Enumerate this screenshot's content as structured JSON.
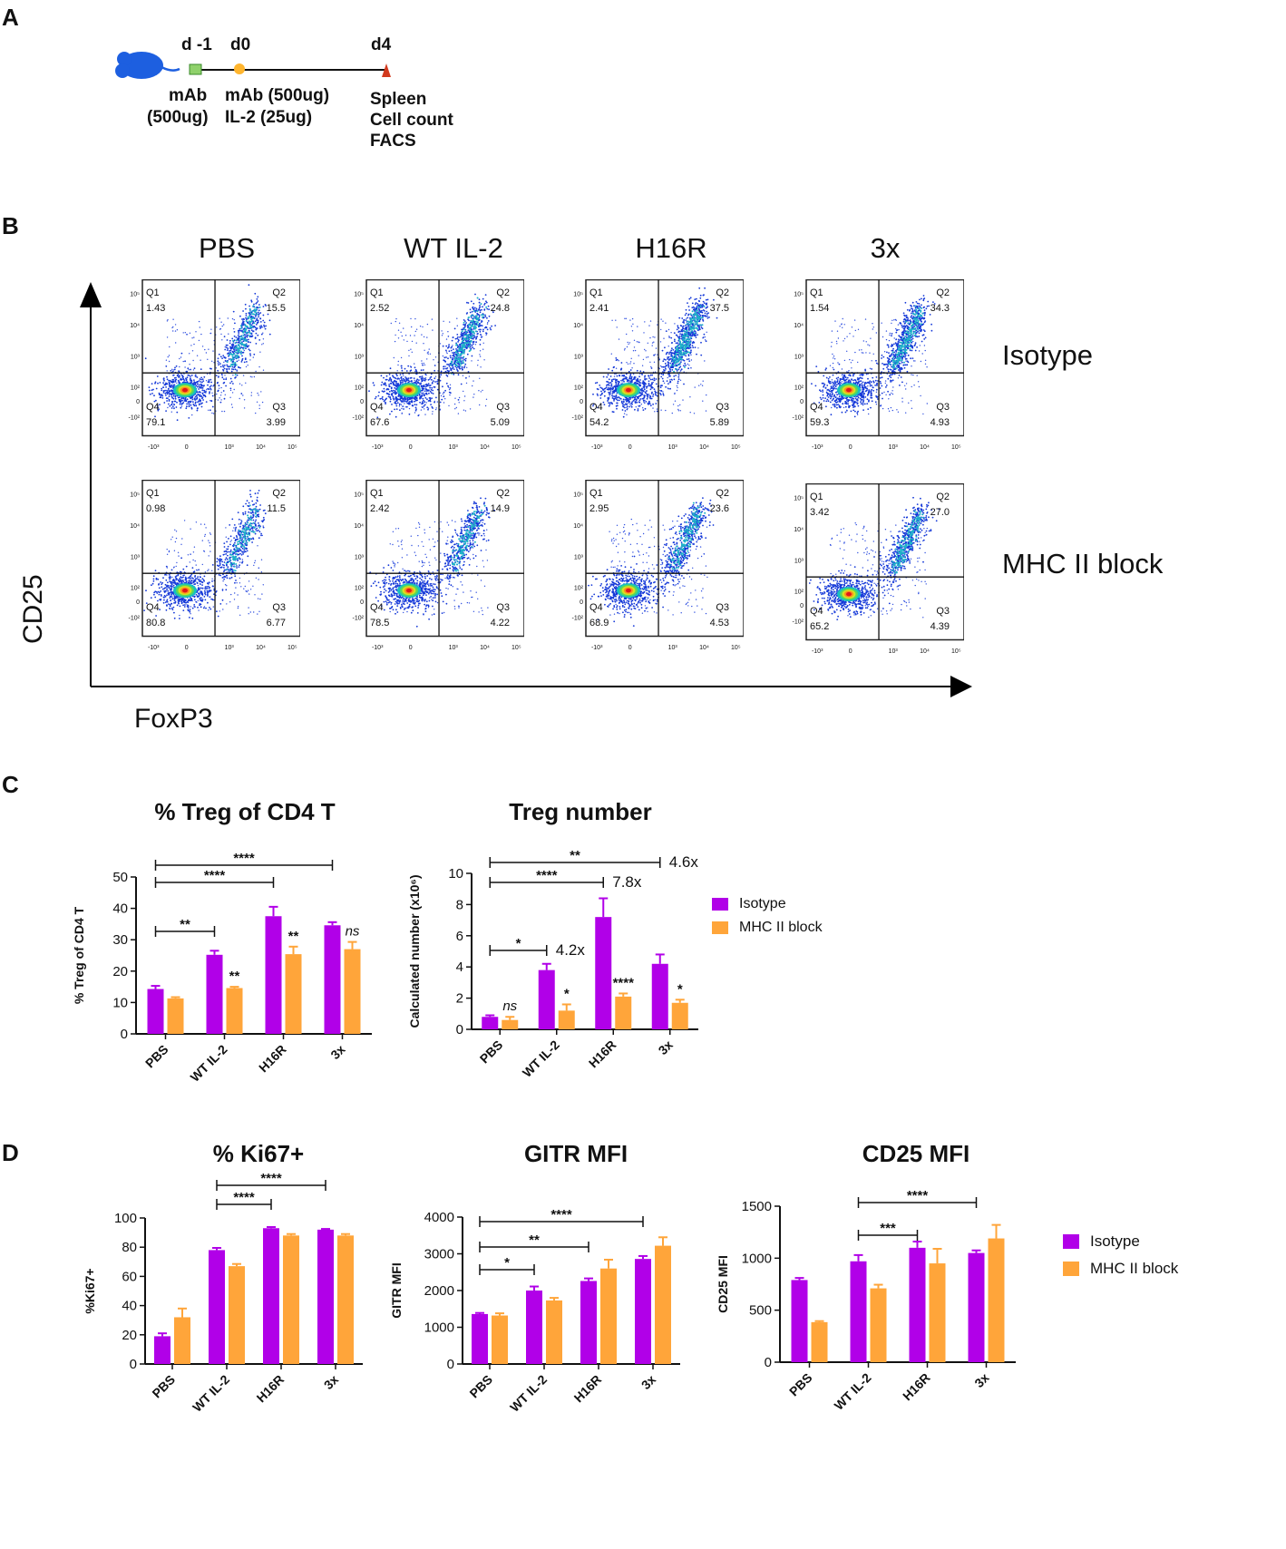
{
  "panels": {
    "a": "A",
    "b": "B",
    "c": "C",
    "d": "D"
  },
  "timeline": {
    "day_m1": "d -1",
    "day_0": "d0",
    "day_4": "d4",
    "t_m1": [
      "mAb",
      "(500ug)"
    ],
    "t_0": [
      "mAb (500ug)",
      "IL-2 (25ug)"
    ],
    "t_4": [
      "Spleen",
      "Cell count",
      "FACS"
    ]
  },
  "flow": {
    "columns": [
      "PBS",
      "WT IL-2",
      "H16R",
      "3x"
    ],
    "rows": [
      "Isotype",
      "MHC II block"
    ],
    "x_axis": "FoxP3",
    "y_axis": "CD25",
    "y_ticks": [
      "10⁵",
      "10⁴",
      "10³",
      "10²",
      "0",
      "-10²"
    ],
    "x_ticks": [
      "-10³",
      "0",
      "10³",
      "10⁴",
      "10⁵"
    ],
    "quadrant_names": [
      "Q1",
      "Q2",
      "Q3",
      "Q4"
    ],
    "quadrants": [
      [
        {
          "q1": "1.43",
          "q2": "15.5",
          "q3": "3.99",
          "q4": "79.1"
        },
        {
          "q1": "2.52",
          "q2": "24.8",
          "q3": "5.09",
          "q4": "67.6"
        },
        {
          "q1": "2.41",
          "q2": "37.5",
          "q3": "5.89",
          "q4": "54.2"
        },
        {
          "q1": "1.54",
          "q2": "34.3",
          "q3": "4.93",
          "q4": "59.3"
        }
      ],
      [
        {
          "q1": "0.98",
          "q2": "11.5",
          "q3": "6.77",
          "q4": "80.8"
        },
        {
          "q1": "2.42",
          "q2": "14.9",
          "q3": "4.22",
          "q4": "78.5"
        },
        {
          "q1": "2.95",
          "q2": "23.6",
          "q3": "4.53",
          "q4": "68.9"
        },
        {
          "q1": "3.42",
          "q2": "27.0",
          "q3": "4.39",
          "q4": "65.2"
        }
      ]
    ]
  },
  "colors": {
    "isotype": "#b100e8",
    "mhc": "#ffa53a"
  },
  "chart_data": [
    {
      "type": "bar",
      "title": "% Treg of CD4 T",
      "ylabel": "% Treg of CD4 T",
      "categories": [
        "PBS",
        "WT IL-2",
        "H16R",
        "3x"
      ],
      "ylim": [
        0,
        50
      ],
      "yticks": [
        0,
        10,
        20,
        30,
        40,
        50
      ],
      "series": [
        {
          "name": "Isotype",
          "values": [
            14.3,
            25.2,
            37.5,
            34.6
          ],
          "errors": [
            1.0,
            1.3,
            3.0,
            1.0
          ]
        },
        {
          "name": "MHC II block",
          "values": [
            11.3,
            14.6,
            25.4,
            27.0
          ],
          "errors": [
            0.4,
            0.4,
            2.4,
            2.3
          ]
        }
      ],
      "brackets": [
        {
          "from": 0,
          "to": 1,
          "label": "**"
        },
        {
          "from": 0,
          "to": 2,
          "label": "****"
        },
        {
          "from": 0,
          "to": 3,
          "label": "****"
        }
      ],
      "marks": [
        {
          "cat": 1,
          "label": "**",
          "italic": false
        },
        {
          "cat": 2,
          "label": "**",
          "italic": false
        },
        {
          "cat": 3,
          "label": "ns",
          "italic": true
        }
      ]
    },
    {
      "type": "bar",
      "title": "Treg number",
      "ylabel": "Calculated number (x10⁶)",
      "categories": [
        "PBS",
        "WT IL-2",
        "H16R",
        "3x"
      ],
      "ylim": [
        0,
        10
      ],
      "yticks": [
        0,
        2,
        4,
        6,
        8,
        10
      ],
      "series": [
        {
          "name": "Isotype",
          "values": [
            0.8,
            3.8,
            7.2,
            4.2
          ],
          "errors": [
            0.1,
            0.4,
            1.2,
            0.6
          ]
        },
        {
          "name": "MHC II block",
          "values": [
            0.6,
            1.2,
            2.1,
            1.7
          ],
          "errors": [
            0.2,
            0.4,
            0.2,
            0.2
          ]
        }
      ],
      "brackets": [
        {
          "from": 0,
          "to": 1,
          "label": "*",
          "fold": "4.2x"
        },
        {
          "from": 0,
          "to": 2,
          "label": "****",
          "fold": "7.8x"
        },
        {
          "from": 0,
          "to": 3,
          "label": "**",
          "fold": "4.6x"
        }
      ],
      "marks": [
        {
          "cat": 0,
          "label": "ns",
          "italic": true
        },
        {
          "cat": 1,
          "label": "*",
          "italic": false
        },
        {
          "cat": 2,
          "label": "****",
          "italic": false
        },
        {
          "cat": 3,
          "label": "*",
          "italic": false
        }
      ]
    },
    {
      "type": "bar",
      "title": "% Ki67+",
      "ylabel": "%Ki67+",
      "categories": [
        "PBS",
        "WT IL-2",
        "H16R",
        "3x"
      ],
      "ylim": [
        0,
        100
      ],
      "yticks": [
        0,
        20,
        40,
        60,
        80,
        100
      ],
      "series": [
        {
          "name": "Isotype",
          "values": [
            19,
            78,
            93,
            92
          ],
          "errors": [
            2,
            1.5,
            0.8,
            0.5
          ]
        },
        {
          "name": "MHC II block",
          "values": [
            32,
            67,
            88,
            88
          ],
          "errors": [
            6,
            1.5,
            1,
            1
          ]
        }
      ],
      "brackets": [
        {
          "from": 1,
          "to": 2,
          "label": "****"
        },
        {
          "from": 1,
          "to": 3,
          "label": "****"
        }
      ],
      "marks": []
    },
    {
      "type": "bar",
      "title": "GITR MFI",
      "ylabel": "GITR MFI",
      "categories": [
        "PBS",
        "WT IL-2",
        "H16R",
        "3x"
      ],
      "ylim": [
        0,
        4000
      ],
      "yticks": [
        0,
        1000,
        2000,
        3000,
        4000
      ],
      "series": [
        {
          "name": "Isotype",
          "values": [
            1360,
            2000,
            2260,
            2860
          ],
          "errors": [
            30,
            110,
            70,
            80
          ]
        },
        {
          "name": "MHC II block",
          "values": [
            1320,
            1730,
            2600,
            3220
          ],
          "errors": [
            60,
            70,
            240,
            230
          ]
        }
      ],
      "brackets": [
        {
          "from": 0,
          "to": 1,
          "label": "*"
        },
        {
          "from": 0,
          "to": 2,
          "label": "**"
        },
        {
          "from": 0,
          "to": 3,
          "label": "****"
        }
      ],
      "marks": []
    },
    {
      "type": "bar",
      "title": "CD25 MFI",
      "ylabel": "CD25 MFI",
      "categories": [
        "PBS",
        "WT IL-2",
        "H16R",
        "3x"
      ],
      "ylim": [
        0,
        1500
      ],
      "yticks": [
        0,
        500,
        1000,
        1500
      ],
      "series": [
        {
          "name": "Isotype",
          "values": [
            790,
            970,
            1100,
            1050
          ],
          "errors": [
            20,
            60,
            60,
            25
          ]
        },
        {
          "name": "MHC II block",
          "values": [
            385,
            710,
            950,
            1190
          ],
          "errors": [
            10,
            35,
            140,
            130
          ]
        }
      ],
      "brackets": [
        {
          "from": 1,
          "to": 2,
          "label": "***"
        },
        {
          "from": 1,
          "to": 3,
          "label": "****"
        }
      ],
      "marks": []
    }
  ],
  "legend": {
    "isotype": "Isotype",
    "mhc": "MHC II block"
  }
}
